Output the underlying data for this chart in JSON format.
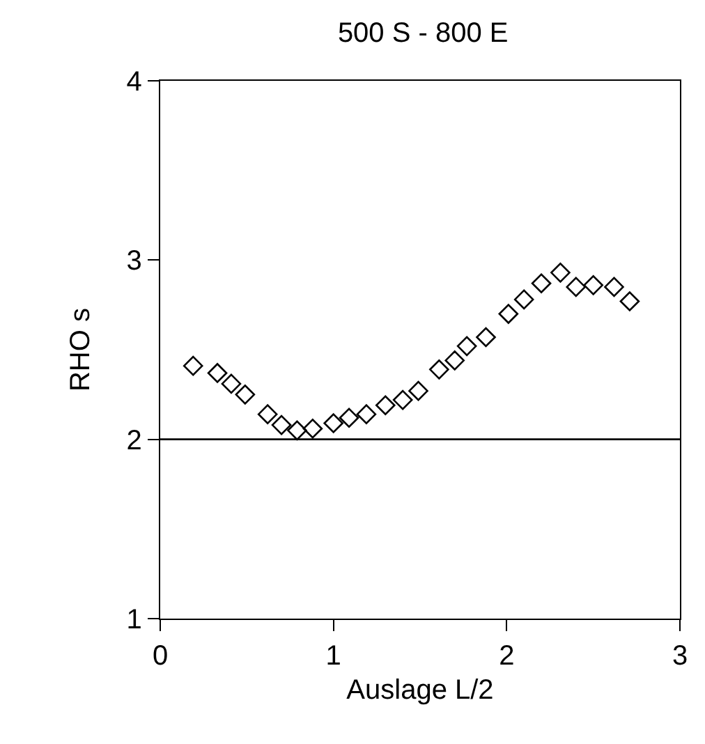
{
  "chart_data": {
    "type": "scatter",
    "title": "500 S - 800 E",
    "xlabel": "Auslage L/2",
    "ylabel": "RHO s",
    "x": [
      0.19,
      0.33,
      0.41,
      0.49,
      0.62,
      0.7,
      0.79,
      0.88,
      1.0,
      1.09,
      1.19,
      1.3,
      1.4,
      1.49,
      1.61,
      1.7,
      1.77,
      1.88,
      2.01,
      2.1,
      2.2,
      2.31,
      2.4,
      2.5,
      2.62,
      2.71
    ],
    "series": [
      {
        "color": "#000000",
        "values": [
          2.41,
          2.37,
          2.31,
          2.25,
          2.14,
          2.08,
          2.05,
          2.06,
          2.09,
          2.12,
          2.14,
          2.19,
          2.22,
          2.27,
          2.39,
          2.44,
          2.52,
          2.57,
          2.7,
          2.78,
          2.87,
          2.93,
          2.85,
          2.86,
          2.85,
          2.77
        ]
      }
    ],
    "marker": "diamond",
    "xlim": [
      0,
      3
    ],
    "ylim": [
      1,
      4
    ],
    "xticks": [
      0,
      1,
      2,
      3
    ],
    "yticks": [
      1,
      2,
      3,
      4
    ],
    "ref_lines": [
      {
        "axis": "y",
        "value": 2,
        "color": "#000000",
        "line_style": "solid"
      }
    ]
  }
}
